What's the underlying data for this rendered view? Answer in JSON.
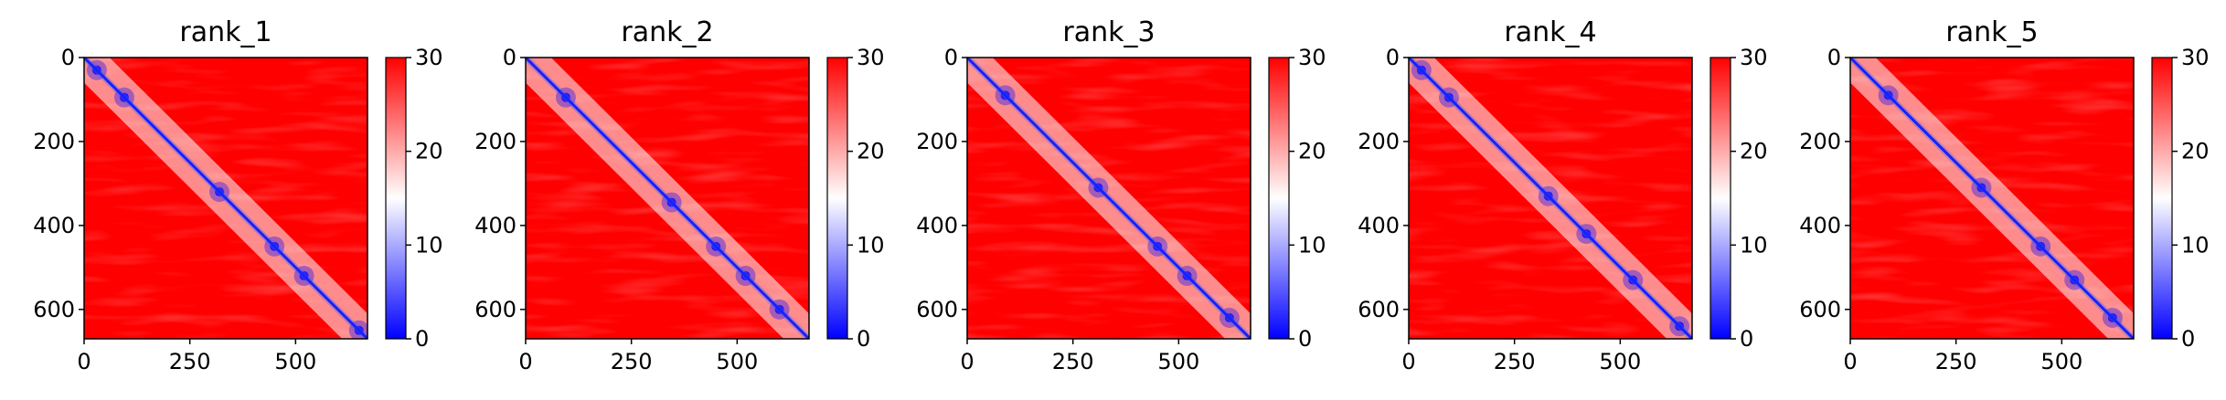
{
  "colormap": {
    "low": "#0000ff",
    "mid": "#ffffff",
    "high": "#ff0000"
  },
  "chart_data": [
    {
      "type": "heatmap",
      "title": "rank_1",
      "xlim": [
        0,
        670
      ],
      "ylim": [
        670,
        0
      ],
      "x_ticks": [
        "0",
        "250",
        "500"
      ],
      "y_ticks": [
        "0",
        "200",
        "400",
        "600"
      ],
      "colorbar": {
        "vmin": 0,
        "vmax": 30,
        "ticks": [
          "0",
          "10",
          "20",
          "30"
        ]
      },
      "blue_spots": [
        [
          30,
          30
        ],
        [
          95,
          95
        ],
        [
          320,
          320
        ],
        [
          450,
          450
        ],
        [
          520,
          520
        ],
        [
          650,
          650
        ]
      ]
    },
    {
      "type": "heatmap",
      "title": "rank_2",
      "xlim": [
        0,
        670
      ],
      "ylim": [
        670,
        0
      ],
      "x_ticks": [
        "0",
        "250",
        "500"
      ],
      "y_ticks": [
        "0",
        "200",
        "400",
        "600"
      ],
      "colorbar": {
        "vmin": 0,
        "vmax": 30,
        "ticks": [
          "0",
          "10",
          "20",
          "30"
        ]
      },
      "blue_spots": [
        [
          95,
          95
        ],
        [
          345,
          345
        ],
        [
          450,
          450
        ],
        [
          520,
          520
        ],
        [
          600,
          600
        ]
      ]
    },
    {
      "type": "heatmap",
      "title": "rank_3",
      "xlim": [
        0,
        670
      ],
      "ylim": [
        670,
        0
      ],
      "x_ticks": [
        "0",
        "250",
        "500"
      ],
      "y_ticks": [
        "0",
        "200",
        "400",
        "600"
      ],
      "colorbar": {
        "vmin": 0,
        "vmax": 30,
        "ticks": [
          "0",
          "10",
          "20",
          "30"
        ]
      },
      "blue_spots": [
        [
          90,
          90
        ],
        [
          310,
          310
        ],
        [
          450,
          450
        ],
        [
          520,
          520
        ],
        [
          620,
          620
        ]
      ]
    },
    {
      "type": "heatmap",
      "title": "rank_4",
      "xlim": [
        0,
        670
      ],
      "ylim": [
        670,
        0
      ],
      "x_ticks": [
        "0",
        "250",
        "500"
      ],
      "y_ticks": [
        "0",
        "200",
        "400",
        "600"
      ],
      "colorbar": {
        "vmin": 0,
        "vmax": 30,
        "ticks": [
          "0",
          "10",
          "20",
          "30"
        ]
      },
      "blue_spots": [
        [
          30,
          30
        ],
        [
          95,
          95
        ],
        [
          330,
          330
        ],
        [
          420,
          420
        ],
        [
          530,
          530
        ],
        [
          640,
          640
        ]
      ]
    },
    {
      "type": "heatmap",
      "title": "rank_5",
      "xlim": [
        0,
        670
      ],
      "ylim": [
        670,
        0
      ],
      "x_ticks": [
        "0",
        "250",
        "500"
      ],
      "y_ticks": [
        "0",
        "200",
        "400",
        "600"
      ],
      "colorbar": {
        "vmin": 0,
        "vmax": 30,
        "ticks": [
          "0",
          "10",
          "20",
          "30"
        ]
      },
      "blue_spots": [
        [
          90,
          90
        ],
        [
          310,
          310
        ],
        [
          450,
          450
        ],
        [
          530,
          530
        ],
        [
          620,
          620
        ]
      ]
    }
  ]
}
